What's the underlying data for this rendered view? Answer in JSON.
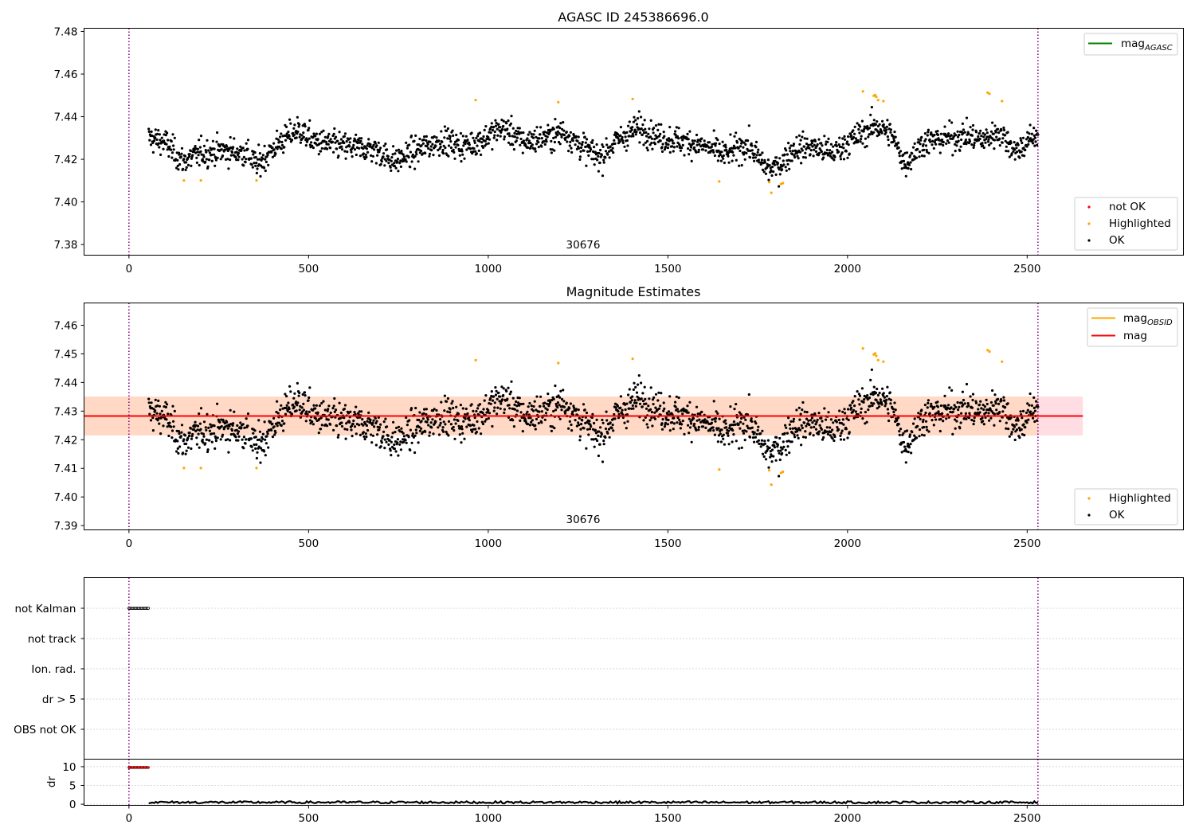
{
  "chart_data": [
    {
      "type": "scatter",
      "title": "AGASC ID 245386696.0",
      "xlim": [
        -125,
        2935
      ],
      "ylim": [
        7.375,
        7.4815
      ],
      "xticks": [
        0,
        500,
        1000,
        1500,
        2000,
        2500
      ],
      "yticks": [
        7.38,
        7.4,
        7.42,
        7.44,
        7.46,
        7.48
      ],
      "ytick_labels": [
        "7.38",
        "7.40",
        "7.42",
        "7.44",
        "7.46",
        "7.48"
      ],
      "annotation": "30676",
      "vlines": [
        0,
        2530
      ],
      "legend_upper": [
        {
          "label": "mag",
          "sub": "AGASC",
          "color": "#008000"
        }
      ],
      "legend_lower": [
        {
          "label": "not OK",
          "color": "#ff0000"
        },
        {
          "label": "Highlighted",
          "color": "#ffa500"
        },
        {
          "label": "OK",
          "color": "#000000"
        }
      ],
      "series": [
        {
          "name": "OK",
          "color": "#000000",
          "x_range": [
            55,
            2530
          ],
          "n": 1950,
          "baseline": 7.427
        },
        {
          "name": "Highlighted",
          "color": "#ffa500",
          "x": [
            153,
            200,
            355,
            965,
            1195,
            1402,
            1643,
            1782,
            1788,
            1815,
            1820,
            2043,
            2073,
            2077,
            2080,
            2085,
            2100,
            2390,
            2395,
            2430
          ],
          "y": [
            7.4101,
            7.4101,
            7.4101,
            7.4478,
            7.4468,
            7.4483,
            7.4096,
            7.4093,
            7.4043,
            7.4084,
            7.4088,
            7.4519,
            7.4498,
            7.4502,
            7.4493,
            7.4478,
            7.4473,
            7.4513,
            7.4508,
            7.4473
          ]
        }
      ]
    },
    {
      "type": "scatter",
      "title": "Magnitude Estimates",
      "xlim": [
        -125,
        2935
      ],
      "ylim": [
        7.3885,
        7.4678
      ],
      "xticks": [
        0,
        500,
        1000,
        1500,
        2000,
        2500
      ],
      "yticks": [
        7.39,
        7.4,
        7.41,
        7.42,
        7.43,
        7.44,
        7.45,
        7.46
      ],
      "ytick_labels": [
        "7.39",
        "7.40",
        "7.41",
        "7.42",
        "7.43",
        "7.44",
        "7.45",
        "7.46"
      ],
      "annotation": "30676",
      "vlines": [
        0,
        2530
      ],
      "mag_line": {
        "value": 7.4283,
        "x_range": [
          -125,
          2655
        ],
        "color": "#ff0000"
      },
      "band_outer": {
        "range": [
          7.4215,
          7.4351
        ],
        "x_range": [
          -125,
          2655
        ],
        "color": "#ffdde3"
      },
      "band_inner": {
        "range": [
          7.4215,
          7.4351
        ],
        "x_range": [
          -125,
          2530
        ],
        "color": "#ffd9c6"
      },
      "legend_upper": [
        {
          "label": "mag",
          "sub": "OBSID",
          "color": "#ffa500"
        },
        {
          "label": "mag",
          "sub": "",
          "color": "#ff0000"
        }
      ],
      "legend_lower": [
        {
          "label": "Highlighted",
          "color": "#ffa500"
        },
        {
          "label": "OK",
          "color": "#000000"
        }
      ],
      "series": [
        {
          "name": "OK",
          "color": "#000000",
          "x_range": [
            55,
            2530
          ],
          "n": 1950,
          "baseline": 7.427
        },
        {
          "name": "Highlighted",
          "color": "#ffa500",
          "x": [
            153,
            200,
            355,
            965,
            1195,
            1402,
            1643,
            1782,
            1788,
            1815,
            1820,
            2043,
            2073,
            2077,
            2080,
            2085,
            2100,
            2390,
            2395,
            2430
          ],
          "y": [
            7.4101,
            7.4101,
            7.4101,
            7.4478,
            7.4468,
            7.4483,
            7.4096,
            7.4093,
            7.4043,
            7.4084,
            7.4088,
            7.4519,
            7.4498,
            7.4502,
            7.4493,
            7.4478,
            7.4473,
            7.4513,
            7.4508,
            7.4473
          ]
        }
      ]
    },
    {
      "type": "scatter",
      "title": "",
      "xlim": [
        -125,
        2935
      ],
      "categories": [
        "not Kalman",
        "not track",
        "Ion. rad.",
        "dr > 5",
        "OBS not OK"
      ],
      "flags": {
        "category": "not Kalman",
        "x_range": [
          0,
          55
        ]
      },
      "vlines": [
        0,
        2530
      ]
    },
    {
      "type": "line",
      "title": "",
      "xlim": [
        -125,
        2935
      ],
      "xticks": [
        0,
        500,
        1000,
        1500,
        2000,
        2500
      ],
      "ylabel": "dr",
      "ylim": [
        -0.3,
        12
      ],
      "yticks": [
        0,
        5,
        10
      ],
      "ytick_labels": [
        "0",
        "5",
        "10"
      ],
      "vlines": [
        0,
        2530
      ],
      "red_points": {
        "x_range": [
          0,
          55
        ],
        "y": 9.8,
        "color": "#ff0000"
      },
      "series": [
        {
          "name": "dr",
          "color": "#000000",
          "x_range": [
            55,
            2530
          ],
          "level": 0.5
        }
      ]
    }
  ]
}
